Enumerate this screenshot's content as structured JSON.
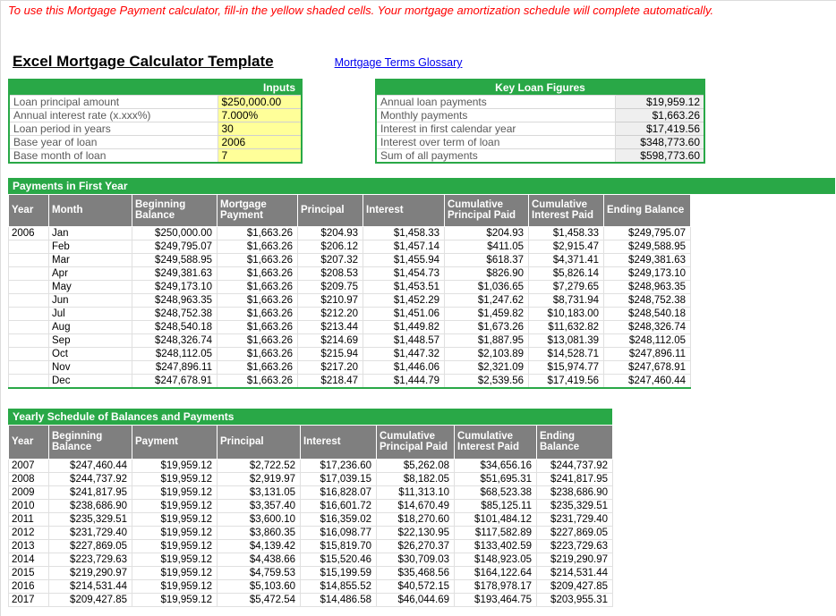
{
  "page": {
    "instruction": "To use this Mortgage Payment calculator, fill-in the yellow shaded cells. Your mortgage amortization schedule will complete automatically.",
    "title": "Excel Mortgage Calculator Template",
    "glossary_link": "Mortgage Terms Glossary"
  },
  "colors": {
    "accent_green": "#29A847",
    "header_gray": "#7F7F7F",
    "input_yellow": "#FFFF99",
    "value_gray_bg": "#EFEFEF",
    "instruction_red": "#FF0000",
    "link_blue": "#0000EE"
  },
  "inputs": {
    "header": "Inputs",
    "rows": [
      {
        "label": "Loan principal amount",
        "value": "$250,000.00"
      },
      {
        "label": "Annual interest rate (x.xxx%)",
        "value": "7.000%"
      },
      {
        "label": "Loan period in years",
        "value": "30"
      },
      {
        "label": "Base year of loan",
        "value": "2006"
      },
      {
        "label": "Base month of loan",
        "value": "7"
      }
    ]
  },
  "key_figures": {
    "header": "Key Loan Figures",
    "rows": [
      {
        "label": "Annual loan payments",
        "value": "$19,959.12"
      },
      {
        "label": "Monthly payments",
        "value": "$1,663.26"
      },
      {
        "label": "Interest in first calendar year",
        "value": "$17,419.56"
      },
      {
        "label": "Interest over term of loan",
        "value": "$348,773.60"
      },
      {
        "label": "Sum of all payments",
        "value": "$598,773.60"
      }
    ]
  },
  "monthly": {
    "title": "Payments in First Year",
    "columns": [
      "Year",
      "Month",
      "Beginning Balance",
      "Mortgage Payment",
      "Principal",
      "Interest",
      "Cumulative Principal Paid",
      "Cumulative Interest Paid",
      "Ending Balance"
    ],
    "rows": [
      [
        "2006",
        "Jan",
        "$250,000.00",
        "$1,663.26",
        "$204.93",
        "$1,458.33",
        "$204.93",
        "$1,458.33",
        "$249,795.07"
      ],
      [
        "",
        "Feb",
        "$249,795.07",
        "$1,663.26",
        "$206.12",
        "$1,457.14",
        "$411.05",
        "$2,915.47",
        "$249,588.95"
      ],
      [
        "",
        "Mar",
        "$249,588.95",
        "$1,663.26",
        "$207.32",
        "$1,455.94",
        "$618.37",
        "$4,371.41",
        "$249,381.63"
      ],
      [
        "",
        "Apr",
        "$249,381.63",
        "$1,663.26",
        "$208.53",
        "$1,454.73",
        "$826.90",
        "$5,826.14",
        "$249,173.10"
      ],
      [
        "",
        "May",
        "$249,173.10",
        "$1,663.26",
        "$209.75",
        "$1,453.51",
        "$1,036.65",
        "$7,279.65",
        "$248,963.35"
      ],
      [
        "",
        "Jun",
        "$248,963.35",
        "$1,663.26",
        "$210.97",
        "$1,452.29",
        "$1,247.62",
        "$8,731.94",
        "$248,752.38"
      ],
      [
        "",
        "Jul",
        "$248,752.38",
        "$1,663.26",
        "$212.20",
        "$1,451.06",
        "$1,459.82",
        "$10,183.00",
        "$248,540.18"
      ],
      [
        "",
        "Aug",
        "$248,540.18",
        "$1,663.26",
        "$213.44",
        "$1,449.82",
        "$1,673.26",
        "$11,632.82",
        "$248,326.74"
      ],
      [
        "",
        "Sep",
        "$248,326.74",
        "$1,663.26",
        "$214.69",
        "$1,448.57",
        "$1,887.95",
        "$13,081.39",
        "$248,112.05"
      ],
      [
        "",
        "Oct",
        "$248,112.05",
        "$1,663.26",
        "$215.94",
        "$1,447.32",
        "$2,103.89",
        "$14,528.71",
        "$247,896.11"
      ],
      [
        "",
        "Nov",
        "$247,896.11",
        "$1,663.26",
        "$217.20",
        "$1,446.06",
        "$2,321.09",
        "$15,974.77",
        "$247,678.91"
      ],
      [
        "",
        "Dec",
        "$247,678.91",
        "$1,663.26",
        "$218.47",
        "$1,444.79",
        "$2,539.56",
        "$17,419.56",
        "$247,460.44"
      ]
    ]
  },
  "yearly": {
    "title": "Yearly Schedule of Balances and Payments",
    "columns": [
      "Year",
      "Beginning Balance",
      "Payment",
      "Principal",
      "Interest",
      "Cumulative Principal Paid",
      "Cumulative Interest Paid",
      "Ending Balance"
    ],
    "rows": [
      [
        "2007",
        "$247,460.44",
        "$19,959.12",
        "$2,722.52",
        "$17,236.60",
        "$5,262.08",
        "$34,656.16",
        "$244,737.92"
      ],
      [
        "2008",
        "$244,737.92",
        "$19,959.12",
        "$2,919.97",
        "$17,039.15",
        "$8,182.05",
        "$51,695.31",
        "$241,817.95"
      ],
      [
        "2009",
        "$241,817.95",
        "$19,959.12",
        "$3,131.05",
        "$16,828.07",
        "$11,313.10",
        "$68,523.38",
        "$238,686.90"
      ],
      [
        "2010",
        "$238,686.90",
        "$19,959.12",
        "$3,357.40",
        "$16,601.72",
        "$14,670.49",
        "$85,125.11",
        "$235,329.51"
      ],
      [
        "2011",
        "$235,329.51",
        "$19,959.12",
        "$3,600.10",
        "$16,359.02",
        "$18,270.60",
        "$101,484.12",
        "$231,729.40"
      ],
      [
        "2012",
        "$231,729.40",
        "$19,959.12",
        "$3,860.35",
        "$16,098.77",
        "$22,130.95",
        "$117,582.89",
        "$227,869.05"
      ],
      [
        "2013",
        "$227,869.05",
        "$19,959.12",
        "$4,139.42",
        "$15,819.70",
        "$26,270.37",
        "$133,402.59",
        "$223,729.63"
      ],
      [
        "2014",
        "$223,729.63",
        "$19,959.12",
        "$4,438.66",
        "$15,520.46",
        "$30,709.03",
        "$148,923.05",
        "$219,290.97"
      ],
      [
        "2015",
        "$219,290.97",
        "$19,959.12",
        "$4,759.53",
        "$15,199.59",
        "$35,468.56",
        "$164,122.64",
        "$214,531.44"
      ],
      [
        "2016",
        "$214,531.44",
        "$19,959.12",
        "$5,103.60",
        "$14,855.52",
        "$40,572.15",
        "$178,978.17",
        "$209,427.85"
      ],
      [
        "2017",
        "$209,427.85",
        "$19,959.12",
        "$5,472.54",
        "$14,486.58",
        "$46,044.69",
        "$193,464.75",
        "$203,955.31"
      ]
    ]
  }
}
